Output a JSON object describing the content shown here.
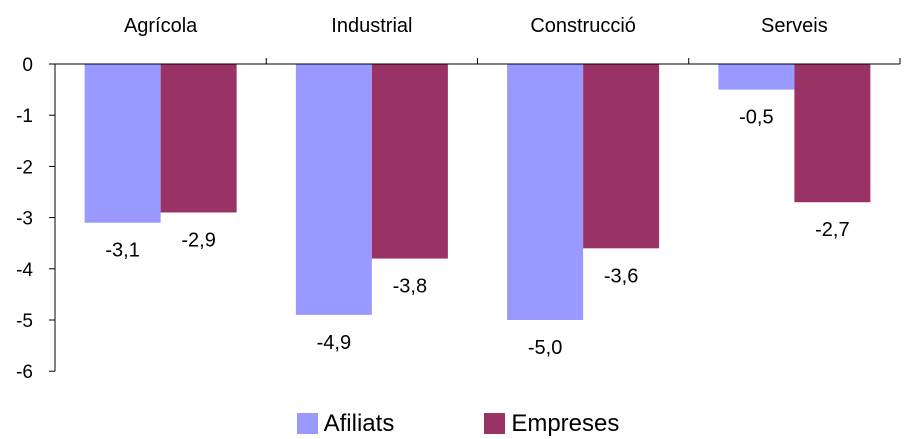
{
  "chart_data": {
    "type": "bar",
    "title": "",
    "xlabel": "",
    "ylabel": "",
    "categories": [
      "Agrícola",
      "Industrial",
      "Construcció",
      "Serveis"
    ],
    "series": [
      {
        "name": "Afiliats",
        "color": "#9999FF",
        "values": [
          -3.1,
          -4.9,
          -5.0,
          -0.5
        ],
        "labels": [
          "-3,1",
          "-4,9",
          "-5,0",
          "-0,5"
        ]
      },
      {
        "name": "Empreses",
        "color": "#993366",
        "values": [
          -2.9,
          -3.8,
          -3.6,
          -2.7
        ],
        "labels": [
          "-2,9",
          "-3,8",
          "-3,6",
          "-2,7"
        ]
      }
    ],
    "ylim": [
      -6,
      0
    ],
    "yticks": [
      0,
      -1,
      -2,
      -3,
      -4,
      -5,
      -6
    ],
    "ytick_labels": [
      "0",
      "-1",
      "-2",
      "-3",
      "-4",
      "-5",
      "-6"
    ],
    "category_labels_position": "top",
    "grid": false,
    "legend": "bottom"
  }
}
